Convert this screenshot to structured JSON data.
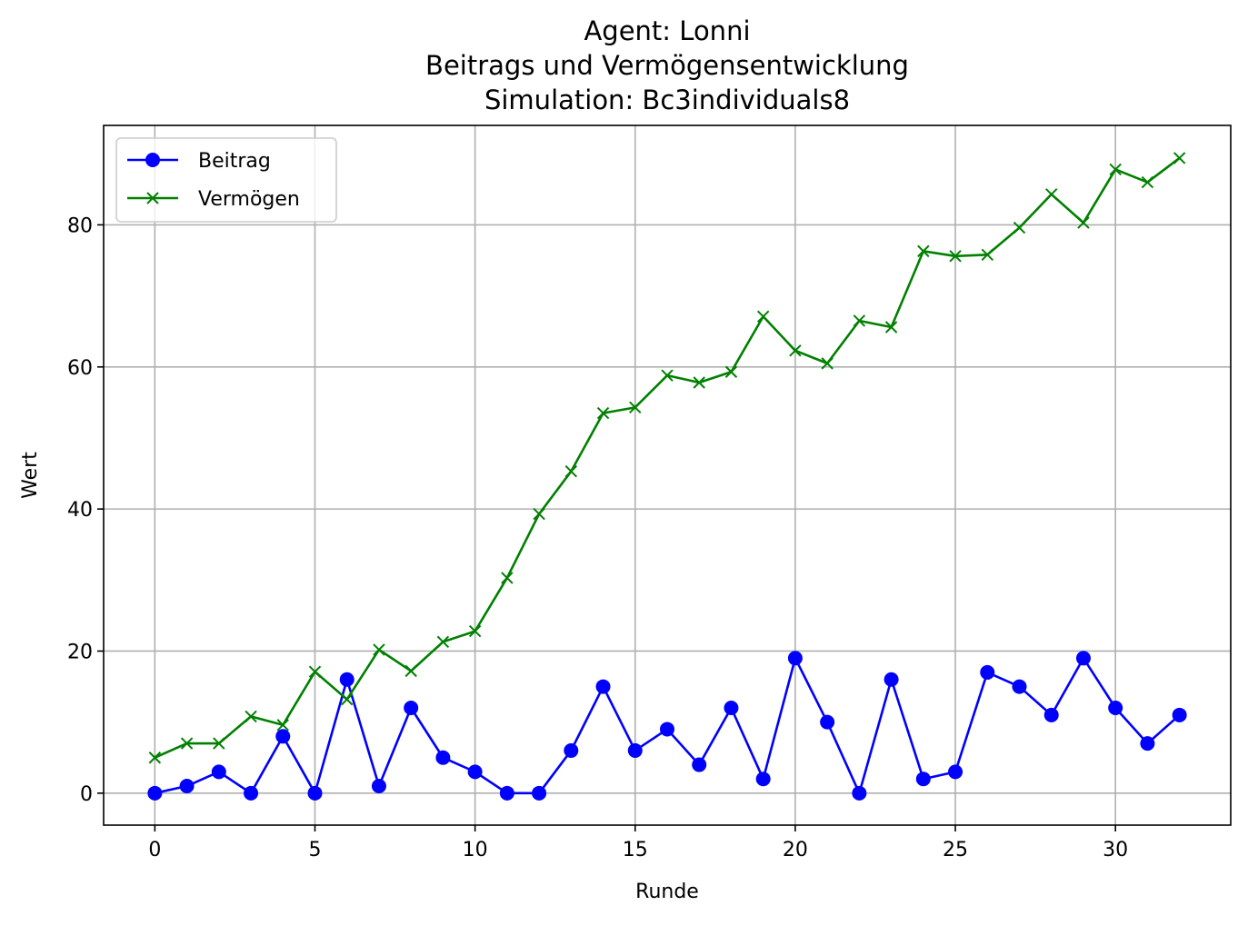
{
  "chart_data": {
    "type": "line",
    "title_lines": [
      "Agent: Lonni",
      "Beitrags und Vermögensentwicklung",
      "Simulation: Bc3individuals8"
    ],
    "xlabel": "Runde",
    "ylabel": "Wert",
    "xlim": [
      -1.6,
      33.6
    ],
    "ylim": [
      -4.5,
      94.0
    ],
    "x_ticks": [
      0,
      5,
      10,
      15,
      20,
      25,
      30
    ],
    "y_ticks": [
      0,
      20,
      40,
      60,
      80
    ],
    "grid": true,
    "legend_position": "upper-left",
    "x": [
      0,
      1,
      2,
      3,
      4,
      5,
      6,
      7,
      8,
      9,
      10,
      11,
      12,
      13,
      14,
      15,
      16,
      17,
      18,
      19,
      20,
      21,
      22,
      23,
      24,
      25,
      26,
      27,
      28,
      29,
      30,
      31,
      32
    ],
    "series": [
      {
        "name": "Beitrag",
        "color": "#0000ff",
        "marker": "circle",
        "values": [
          0,
          1,
          3,
          0,
          8,
          0,
          16,
          1,
          12,
          5,
          3,
          0,
          0,
          6,
          15,
          6,
          9,
          4,
          12,
          2,
          19,
          10,
          0,
          16,
          2,
          3,
          17,
          15,
          11,
          19,
          12,
          7,
          11
        ]
      },
      {
        "name": "Vermögen",
        "color": "#008000",
        "marker": "x",
        "values": [
          5,
          7,
          7,
          10.8,
          9.6,
          17.1,
          13.2,
          20.2,
          17.2,
          21.3,
          22.8,
          30.3,
          39.3,
          45.3,
          53.5,
          54.3,
          58.8,
          57.8,
          59.3,
          67.1,
          62.3,
          60.5,
          66.5,
          65.6,
          76.3,
          75.6,
          75.8,
          79.6,
          84.3,
          80.3,
          87.8,
          86.0,
          89.4
        ]
      }
    ]
  }
}
